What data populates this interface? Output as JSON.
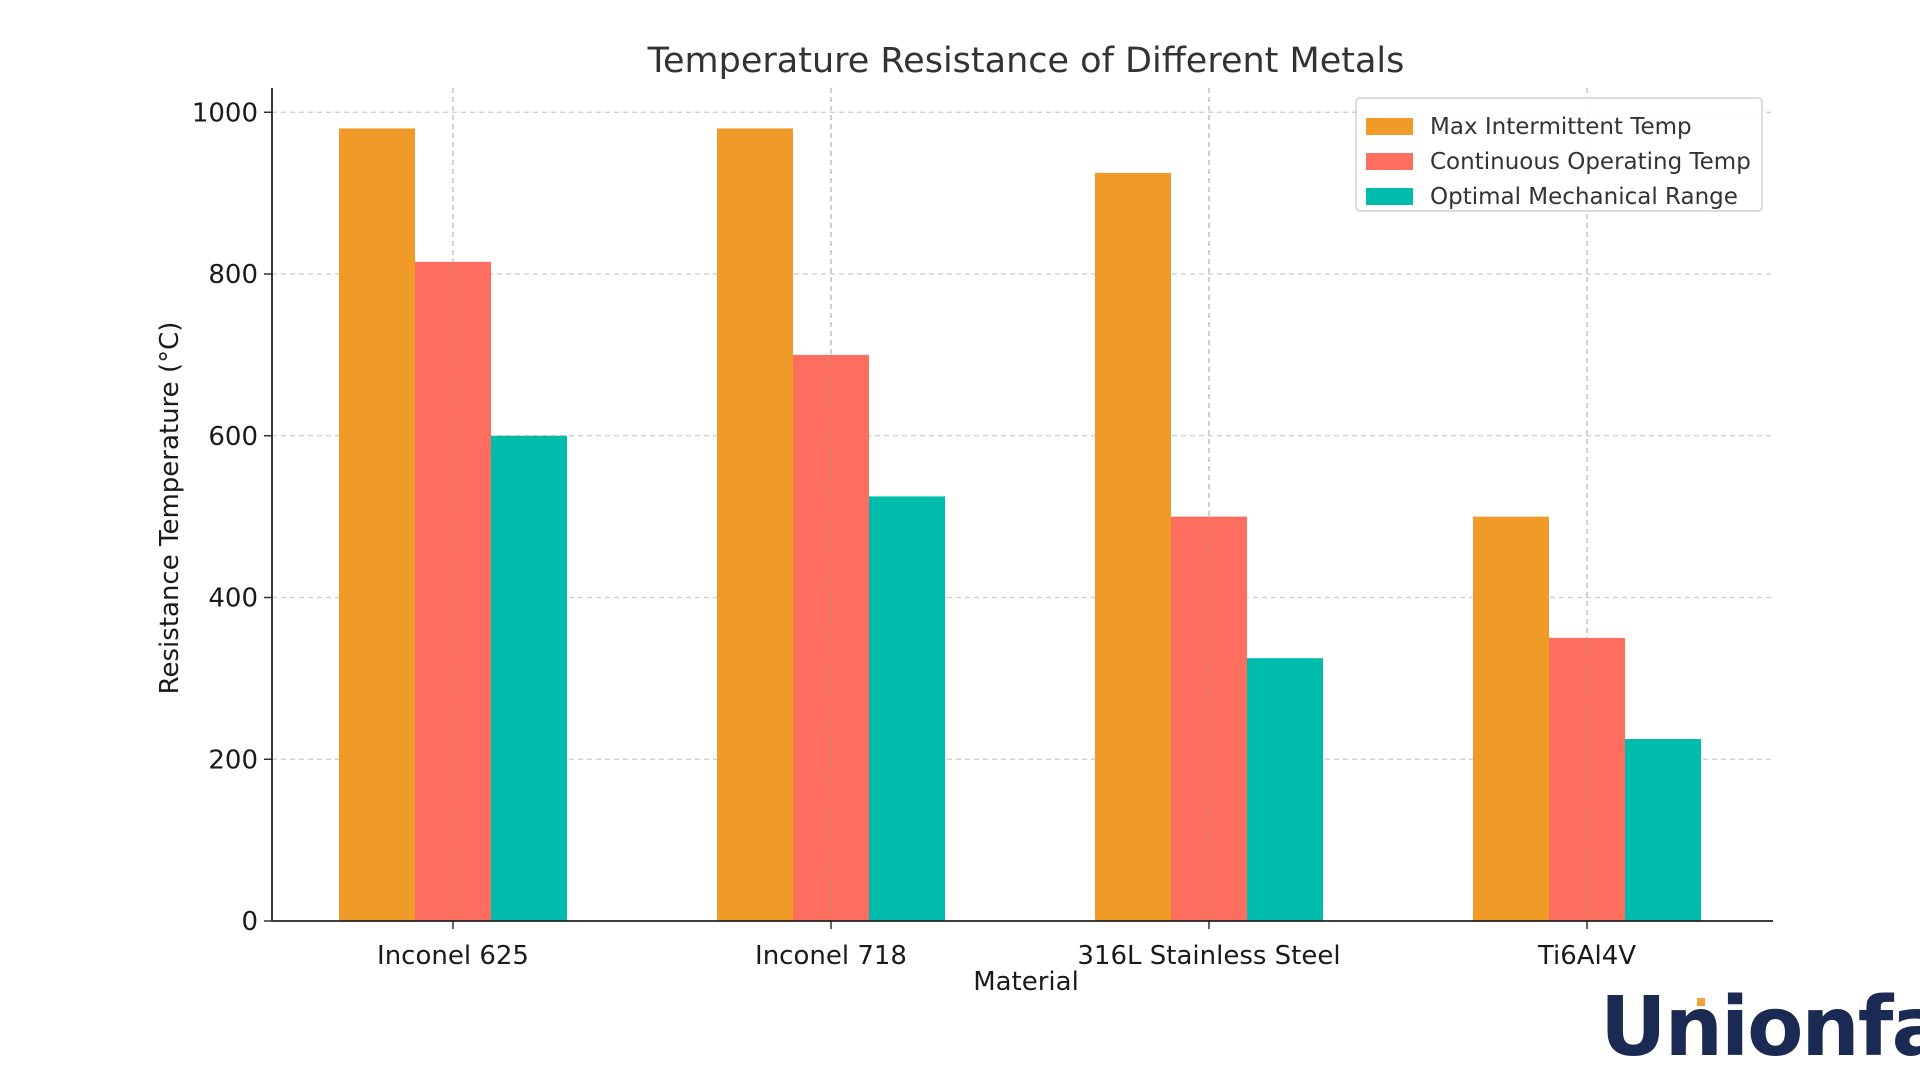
{
  "chart_data": {
    "type": "bar",
    "title": "Temperature Resistance of Different Metals",
    "xlabel": "Material",
    "ylabel": "Resistance Temperature (°C)",
    "categories": [
      "Inconel 625",
      "Inconel 718",
      "316L Stainless Steel",
      "Ti6Al4V"
    ],
    "series": [
      {
        "name": "Max Intermittent Temp",
        "color": "#F09A28",
        "values": [
          980,
          980,
          925,
          500
        ]
      },
      {
        "name": "Continuous Operating Temp",
        "color": "#FD6E5F",
        "values": [
          815,
          700,
          500,
          350
        ]
      },
      {
        "name": "Optimal Mechanical Range",
        "color": "#00BCAD",
        "values": [
          600,
          525,
          325,
          225
        ]
      }
    ],
    "ylim": [
      0,
      1030
    ],
    "yticks": [
      0,
      200,
      400,
      600,
      800,
      1000
    ],
    "grid": true,
    "legend_position": "top-right"
  },
  "brand": {
    "logo_text": "Unionfab",
    "logo_color": "#1B2A52",
    "accent_color": "#F2A23A"
  }
}
